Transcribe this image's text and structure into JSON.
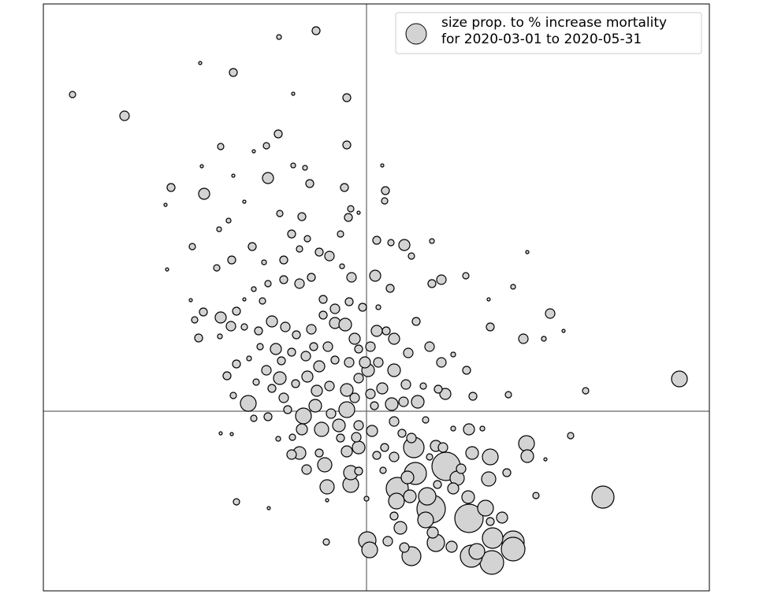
{
  "chart_data": {
    "type": "bubble",
    "xlim": [
      -4.1,
      4.35
    ],
    "ylim": [
      -2.28,
      5.17
    ],
    "hline": 0,
    "vline": 0,
    "legend": "upper right",
    "x": [
      -0.64,
      -1.11,
      -3.73,
      -3.07,
      -1.69,
      -2.11,
      -0.25,
      -0.93,
      -0.25,
      -1.12,
      -1.85,
      -1.27,
      -2.48,
      -2.06,
      -1.25,
      -2.55,
      -0.72,
      -0.28,
      0.24,
      0.23,
      -0.82,
      -0.23,
      -1.87,
      -2.21,
      -2.53,
      2.04,
      0.48,
      0.83,
      0.95,
      1.26,
      0.83,
      1.86,
      2.33,
      1.55,
      1.57,
      1.99,
      2.25,
      2.5,
      3.97,
      2.78,
      1.8,
      2.59,
      2.03,
      2.04,
      3.0,
      2.15,
      2.27,
      1.57,
      1.34,
      1.78,
      1.55,
      1.3,
      0.82,
      1.72,
      1.86,
      1.86,
      1.6,
      1.59,
      1.33,
      0.57,
      0.88,
      1.08,
      0.27,
      0.48,
      0.01,
      0.04,
      0.43,
      0.84,
      1.01,
      0.62,
      0.39,
      0.52,
      0.77,
      1.15,
      1.29,
      1.51,
      0.38,
      -0.2,
      -0.2,
      -0.5,
      -0.53,
      -0.76,
      -0.85,
      -0.95,
      -1.12,
      -0.94,
      -1.65,
      -1.24,
      -0.51,
      -0.5,
      0,
      -1.85,
      -1.71,
      -1.5,
      -1.43,
      -1.69,
      0.6,
      0.88,
      0.97,
      1.1,
      1.3,
      1.47,
      0.75,
      0.65,
      0.47,
      0.32,
      0.2,
      0.02,
      0.13,
      0.11,
      0.3,
      0.15,
      -0.05,
      -0.22,
      -0.4,
      -0.55,
      -0.7,
      -0.85,
      -1.05,
      -1.25,
      -1.43,
      -1.55,
      -1.65,
      -1.85,
      -1.72,
      -2.07,
      -2.18,
      -2.13,
      -1.86,
      -1.55,
      -1.37,
      -1.2,
      -1.03,
      -0.89,
      -0.7,
      -0.55,
      -0.4,
      -0.27,
      -0.15,
      -0.1,
      0.05,
      0.25,
      0.35,
      0.53,
      0.8,
      0.95,
      1.1,
      1.27,
      1.35,
      1.0,
      0.91,
      0.72,
      0.5,
      0.35,
      0.15,
      -0.02,
      -0.22,
      -0.4,
      -0.6,
      -0.77,
      -0.95,
      -1.15,
      -1.35,
      -1.49,
      -1.65,
      -1.77,
      -1.27,
      -1.1,
      -0.9,
      -0.75,
      -0.63,
      -0.47,
      -0.25,
      -0.1,
      0.05,
      -0.25,
      -0.45,
      -0.65,
      -0.8,
      -1.0,
      -1.25,
      -0.82,
      -0.57,
      -0.35,
      -0.1,
      0.07,
      0.35,
      0.45,
      0.23,
      -0.1,
      -0.25,
      -0.33,
      -0.6,
      -1.05,
      -1.2,
      -1.4,
      -1.08,
      -0.67,
      -0.49,
      -0.47,
      -0.6,
      -0.75,
      -0.95,
      -1.1,
      -1.45,
      -1.71,
      -1.9,
      -1.3,
      -1.05,
      -0.85,
      -0.33,
      -0.2,
      -0.1,
      -1.55,
      -1.75,
      -2.23,
      -1.32,
      -0.19,
      -0.31,
      0.31,
      0.13,
      0.57,
      0.63,
      0.2,
      -0.93,
      -0.78,
      -1.43,
      -2.09,
      -1.69,
      -0.15,
      0.1,
      -0.13,
      -0.1,
      0.35,
      0.57,
      0.8,
      1.2,
      0.9,
      1.1,
      1.57,
      1.4,
      0.55,
      0.75,
      0.35,
      0.21,
      0.13
    ],
    "series": [
      {
        "name": "size prop. to % increase mortality\nfor 2020-03-01 to 2020-05-31",
        "color": "#d3d3d3",
        "values": [
          4.83,
          4.75,
          4.02,
          3.75,
          4.3,
          4.42,
          3.98,
          4.03,
          3.38,
          3.52,
          3.36,
          3.37,
          2.84,
          2.76,
          2.96,
          2.62,
          2.89,
          2.84,
          2.8,
          2.67,
          2.47,
          2.46,
          2.31,
          2.09,
          1.8,
          2.02,
          2.11,
          2.16,
          1.67,
          1.72,
          1.62,
          1.58,
          1.24,
          1.42,
          1.07,
          0.92,
          0.92,
          1.02,
          0.41,
          0.26,
          0.21,
          -0.31,
          -0.41,
          -0.57,
          -1.09,
          -1.07,
          -0.61,
          -0.58,
          -0.53,
          -0.78,
          -0.86,
          -1.36,
          -1.24,
          -1.35,
          -1.66,
          -1.75,
          -1.61,
          -1.92,
          -1.84,
          -1.84,
          -1.67,
          -1.72,
          -1.65,
          -1.73,
          -1.64,
          -1.76,
          -1.48,
          -1.54,
          -0.7,
          -0.79,
          -0.98,
          -0.84,
          -1.08,
          -0.85,
          -1.09,
          -1.23,
          -1.14,
          -0.93,
          -0.78,
          -0.96,
          -0.68,
          -0.74,
          -0.53,
          -0.55,
          -0.35,
          -0.33,
          -1.15,
          -1.23,
          -1.66,
          -1.13,
          -1.11,
          -0.28,
          -0.29,
          0.1,
          -0.09,
          0.2,
          -0.46,
          -0.44,
          -0.46,
          -0.22,
          -0.23,
          -0.22,
          -0.11,
          0.12,
          0.12,
          0.09,
          0.29,
          0.52,
          1.02,
          1.72,
          1.56,
          1.32,
          1.32,
          1.39,
          1.3,
          1.42,
          1.7,
          1.62,
          1.67,
          1.62,
          1.55,
          1.42,
          1.27,
          1.19,
          1.08,
          1.26,
          1.16,
          0.93,
          0.95,
          1.07,
          1.02,
          1.14,
          1.07,
          0.97,
          1.04,
          1.22,
          1.12,
          1.1,
          0.92,
          0.79,
          0.82,
          1.02,
          0.92,
          0.74,
          0.82,
          0.62,
          0.72,
          0.52,
          0.19,
          0.22,
          0.28,
          0.32,
          0.34,
          0.52,
          0.62,
          0.62,
          0.62,
          0.65,
          0.57,
          0.7,
          0.75,
          0.79,
          0.82,
          0.67,
          0.6,
          0.45,
          0.52,
          0.42,
          0.35,
          0.44,
          0.26,
          0.32,
          0.27,
          0.42,
          0.22,
          0.02,
          -0.03,
          0.07,
          -0.06,
          0.02,
          -0.07,
          -0.23,
          -0.23,
          -0.18,
          -0.18,
          -0.25,
          -0.13,
          -0.28,
          -0.46,
          -0.46,
          -0.51,
          -0.34,
          -0.53,
          0.17,
          0.29,
          0.37,
          0.64,
          0.82,
          0.82,
          1.97,
          2.02,
          2.19,
          2.25,
          2.51,
          2.09,
          1.92,
          1.82,
          1.89,
          1.92,
          2.06,
          2.25,
          2.57,
          2.52,
          2.66,
          2.42,
          1.41,
          1.4,
          1.7,
          1.84,
          2.14,
          2.17,
          1.97,
          1.14,
          3.12,
          3.12,
          3.09,
          3.3,
          3.11,
          2.99,
          0.17,
          0.07,
          -0.33,
          -0.76,
          -0.58,
          -0.34,
          -0.58,
          -0.73,
          -0.93,
          -0.98,
          -1.4,
          -1.78,
          -1.08,
          -1.38,
          -1.33,
          -0.75,
          -0.56
        ],
        "sizes": [
          6.3,
          2.3,
          4,
          9,
          6.3,
          1,
          6.3,
          1,
          6.3,
          6.3,
          4,
          4,
          6.3,
          12.3,
          12.3,
          1,
          6.3,
          6.3,
          6.3,
          4,
          6.3,
          6.3,
          2.3,
          4,
          1,
          1,
          12.3,
          2.3,
          9,
          4,
          6.3,
          2.3,
          9,
          1,
          6.3,
          9,
          2.3,
          1,
          25,
          4,
          4,
          4,
          25,
          16,
          49,
          4,
          1,
          25,
          16,
          6.3,
          20.3,
          81,
          81,
          12.3,
          49,
          56.3,
          42.3,
          56.3,
          49,
          36,
          30.3,
          12.3,
          9,
          9,
          30.3,
          25,
          16,
          12.3,
          81,
          49,
          49,
          16,
          30.3,
          20.3,
          16,
          25,
          25,
          25,
          20.3,
          20.3,
          20.3,
          9,
          16,
          9,
          2.3,
          4,
          4,
          1,
          4,
          1,
          2.3,
          1,
          1,
          25,
          4,
          4,
          42.3,
          12.3,
          9,
          2.3,
          12.3,
          2.3,
          4,
          16,
          9,
          16,
          12.3,
          16,
          12.3,
          12.3,
          6.3,
          2.3,
          6.3,
          6.3,
          9,
          6.3,
          6.3,
          9,
          6.3,
          4,
          2.3,
          1,
          6.3,
          12.3,
          9,
          6.3,
          4,
          6.3,
          2.3,
          4,
          6.3,
          12.3,
          9,
          6.3,
          9,
          6.3,
          12.3,
          16,
          12.3,
          6.3,
          9,
          6.3,
          12.3,
          9,
          9,
          9,
          2.3,
          6.3,
          6.3,
          12.3,
          6.3,
          4,
          9,
          16,
          9,
          12.3,
          9,
          6.3,
          12.3,
          9,
          6.3,
          12.3,
          4,
          2.3,
          6.3,
          6.3,
          9,
          16,
          6.3,
          12.3,
          12.3,
          9,
          16,
          9,
          9,
          25,
          9,
          16,
          25,
          6.3,
          6.3,
          12.3,
          20.3,
          16,
          9,
          12.3,
          9,
          6.3,
          6.3,
          16,
          12.3,
          6.3,
          6.3,
          9,
          6.3,
          4,
          6.3,
          6.3,
          9,
          9,
          6.3,
          4,
          6.3,
          4,
          6.3,
          6.3,
          4,
          2.3,
          6.3,
          4,
          4,
          4,
          1,
          1,
          2.3,
          1,
          4,
          9,
          2.3,
          4,
          6.3,
          4,
          6.3,
          1,
          2.3,
          2.3,
          1,
          1,
          1,
          9,
          6.3,
          9,
          6.3,
          9,
          9,
          4,
          9,
          6.3,
          12.3,
          6.3,
          25,
          16,
          25,
          6.3,
          4,
          6.3
        ]
      }
    ]
  }
}
